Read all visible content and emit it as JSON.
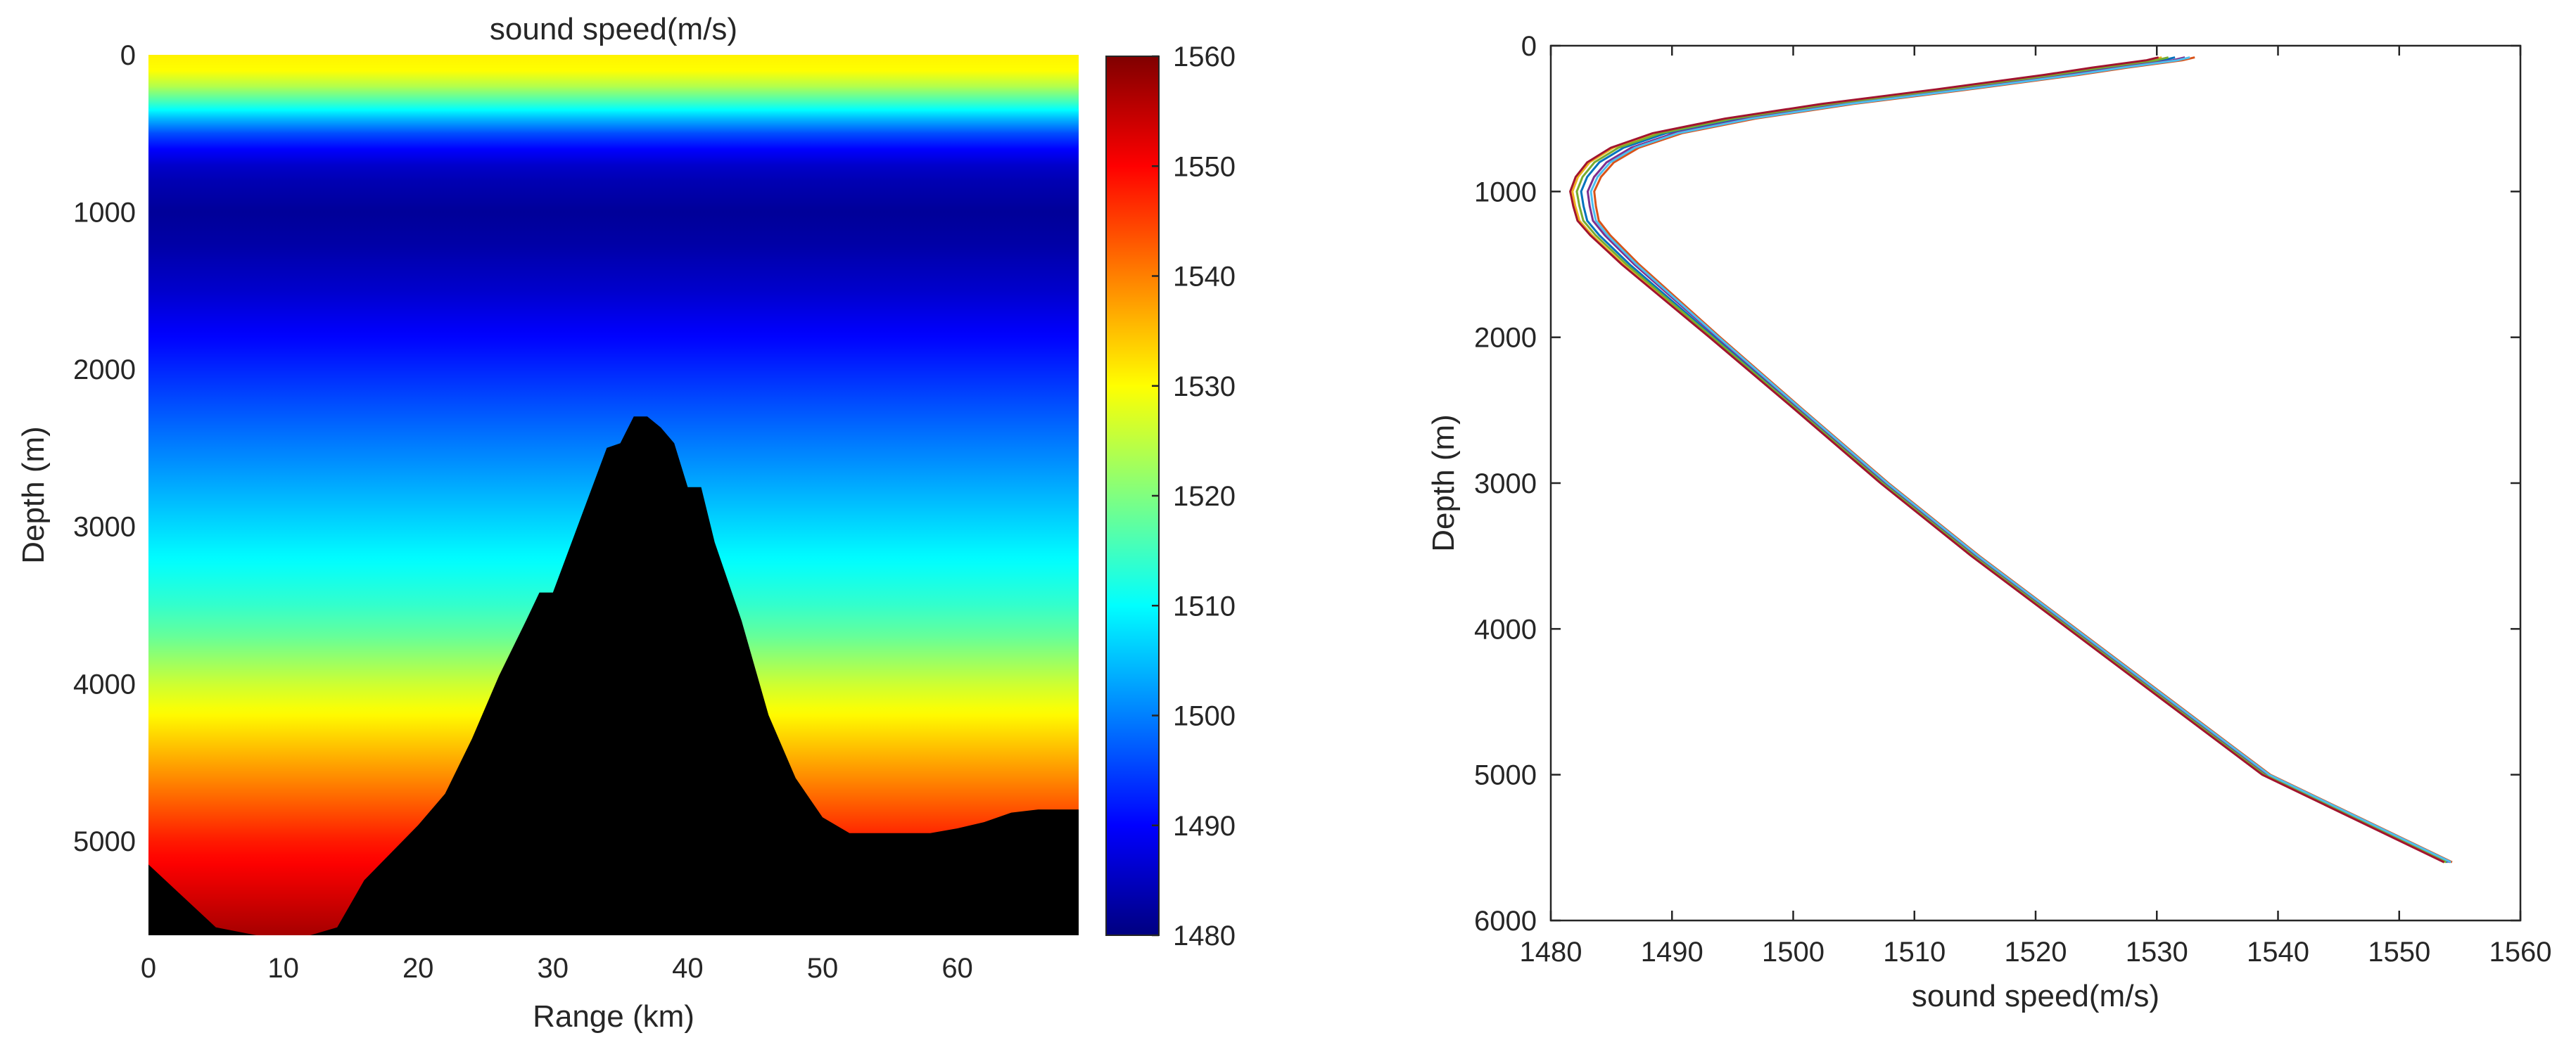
{
  "chart_data": [
    {
      "type": "heatmap",
      "title": "sound speed(m/s)",
      "xlabel": "Range (km)",
      "ylabel": "Depth (m)",
      "xlim": [
        0,
        69
      ],
      "ylim": [
        0,
        5600
      ],
      "y_reversed": true,
      "x_ticks": [
        0,
        10,
        20,
        30,
        40,
        50,
        60
      ],
      "y_ticks": [
        0,
        1000,
        2000,
        3000,
        4000,
        5000
      ],
      "colormap": "jet",
      "colorbar": {
        "min": 1480,
        "max": 1560,
        "ticks": [
          1480,
          1490,
          1500,
          1510,
          1520,
          1530,
          1540,
          1550,
          1560
        ],
        "position": "right"
      },
      "depth_speed_profile": {
        "depth": [
          0,
          100,
          200,
          300,
          400,
          500,
          600,
          700,
          800,
          900,
          1000,
          1200,
          1500,
          2000,
          2500,
          3000,
          3500,
          3700,
          4000,
          4500,
          5000,
          5600
        ],
        "speed": [
          1531,
          1530,
          1524,
          1515,
          1505,
          1496,
          1490,
          1486,
          1484,
          1483,
          1482,
          1483,
          1486,
          1493,
          1500,
          1507,
          1514,
          1518,
          1526,
          1537,
          1548,
          1557
        ]
      },
      "bathymetry": {
        "range_km": [
          0,
          5,
          8,
          10,
          12,
          14,
          16,
          20,
          22,
          24,
          26,
          28,
          29,
          30,
          32,
          34,
          35,
          36,
          37,
          38,
          39,
          40,
          41,
          42,
          44,
          46,
          48,
          50,
          52,
          54,
          56,
          58,
          60,
          62,
          64,
          66,
          69
        ],
        "depth_m": [
          5150,
          5550,
          5600,
          5620,
          5600,
          5550,
          5250,
          4900,
          4700,
          4350,
          3950,
          3600,
          3420,
          3420,
          2960,
          2500,
          2470,
          2300,
          2300,
          2370,
          2470,
          2750,
          2750,
          3100,
          3600,
          4200,
          4600,
          4850,
          4950,
          4950,
          4950,
          4950,
          4920,
          4880,
          4820,
          4800,
          4800
        ]
      },
      "bathymetry_color": "#000000"
    },
    {
      "type": "line",
      "xlabel": "sound speed(m/s)",
      "ylabel": "Depth (m)",
      "xlim": [
        1480,
        1560
      ],
      "ylim": [
        0,
        6000
      ],
      "y_reversed": true,
      "x_ticks": [
        1480,
        1490,
        1500,
        1510,
        1520,
        1530,
        1540,
        1550,
        1560
      ],
      "y_ticks": [
        0,
        1000,
        2000,
        3000,
        4000,
        5000,
        6000
      ],
      "series": [
        {
          "color": "#0072BD",
          "speed_offset": 0.0
        },
        {
          "color": "#D95319",
          "speed_offset": 0.6
        },
        {
          "color": "#EDB120",
          "speed_offset": -0.4
        },
        {
          "color": "#7E2F8E",
          "speed_offset": 0.3
        },
        {
          "color": "#77AC30",
          "speed_offset": -0.2
        },
        {
          "color": "#4DBEEE",
          "speed_offset": 0.45
        },
        {
          "color": "#A2142F",
          "speed_offset": -0.5
        }
      ],
      "profile": {
        "depth": [
          80,
          100,
          150,
          200,
          300,
          400,
          500,
          600,
          700,
          800,
          900,
          1000,
          1100,
          1200,
          1300,
          1500,
          2000,
          2500,
          3000,
          3500,
          4000,
          4500,
          5000,
          5600
        ],
        "speed": [
          1531.5,
          1530.5,
          1526.0,
          1522.0,
          1513.0,
          1503.5,
          1495.5,
          1489.5,
          1486.0,
          1484.0,
          1483.0,
          1482.5,
          1482.7,
          1483.0,
          1484.0,
          1486.5,
          1493.5,
          1500.5,
          1507.5,
          1515.0,
          1523.0,
          1531.0,
          1539.0,
          1554.0
        ]
      }
    }
  ]
}
